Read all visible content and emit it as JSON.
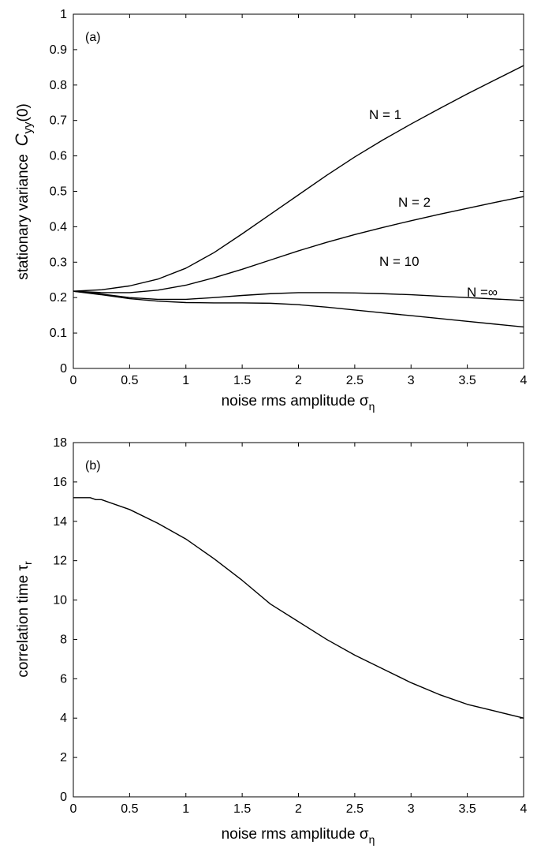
{
  "chart_data": [
    {
      "type": "line",
      "panel_label": "(a)",
      "xlabel": "noise rms amplitude σ",
      "xlabel_sub": "η",
      "ylabel": "stationary variance",
      "ylabel_symbol": "C",
      "ylabel_sub": "yy",
      "ylabel_arg": "(0)",
      "xlim": [
        0,
        4
      ],
      "ylim": [
        0,
        1
      ],
      "xticks": [
        "0",
        "0.5",
        "1",
        "1.5",
        "2",
        "2.5",
        "3",
        "3.5",
        "4"
      ],
      "yticks": [
        "0",
        "0.1",
        "0.2",
        "0.3",
        "0.4",
        "0.5",
        "0.6",
        "0.7",
        "0.8",
        "0.9",
        "1"
      ],
      "grid": false,
      "series": [
        {
          "name": "N = 1",
          "x": [
            0,
            0.25,
            0.5,
            0.75,
            1,
            1.25,
            1.5,
            1.75,
            2,
            2.25,
            2.5,
            2.75,
            3,
            3.25,
            3.5,
            3.75,
            4
          ],
          "y": [
            0.218,
            0.222,
            0.233,
            0.252,
            0.283,
            0.327,
            0.38,
            0.435,
            0.49,
            0.545,
            0.597,
            0.645,
            0.69,
            0.733,
            0.775,
            0.815,
            0.855
          ]
        },
        {
          "name": "N = 2",
          "x": [
            0,
            0.25,
            0.5,
            0.75,
            1,
            1.25,
            1.5,
            1.75,
            2,
            2.25,
            2.5,
            2.75,
            3,
            3.25,
            3.5,
            3.75,
            4
          ],
          "y": [
            0.218,
            0.214,
            0.214,
            0.221,
            0.235,
            0.256,
            0.28,
            0.306,
            0.332,
            0.356,
            0.378,
            0.398,
            0.417,
            0.435,
            0.452,
            0.469,
            0.485
          ]
        },
        {
          "name": "N = 10",
          "x": [
            0,
            0.25,
            0.5,
            0.75,
            1,
            1.25,
            1.5,
            1.75,
            2,
            2.25,
            2.5,
            2.75,
            3,
            3.25,
            3.5,
            3.75,
            4
          ],
          "y": [
            0.218,
            0.21,
            0.2,
            0.195,
            0.195,
            0.2,
            0.206,
            0.211,
            0.214,
            0.214,
            0.213,
            0.211,
            0.208,
            0.204,
            0.2,
            0.196,
            0.192
          ]
        },
        {
          "name": "N =∞",
          "x": [
            0,
            0.25,
            0.5,
            0.75,
            1,
            1.25,
            1.5,
            1.75,
            2,
            2.25,
            2.5,
            2.75,
            3,
            3.25,
            3.5,
            3.75,
            4
          ],
          "y": [
            0.218,
            0.208,
            0.197,
            0.19,
            0.186,
            0.185,
            0.185,
            0.184,
            0.18,
            0.173,
            0.165,
            0.157,
            0.149,
            0.141,
            0.133,
            0.125,
            0.117
          ]
        }
      ]
    },
    {
      "type": "line",
      "panel_label": "(b)",
      "xlabel": "noise rms amplitude σ",
      "xlabel_sub": "η",
      "ylabel": "correlation time τ",
      "ylabel_sub": "r",
      "xlim": [
        0,
        4
      ],
      "ylim": [
        0,
        18
      ],
      "xticks": [
        "0",
        "0.5",
        "1",
        "1.5",
        "2",
        "2.5",
        "3",
        "3.5",
        "4"
      ],
      "yticks": [
        "0",
        "2",
        "4",
        "6",
        "8",
        "10",
        "12",
        "14",
        "16",
        "18"
      ],
      "grid": false,
      "series": [
        {
          "x": [
            0,
            0.15,
            0.2,
            0.25,
            0.5,
            0.75,
            1,
            1.25,
            1.5,
            1.75,
            2,
            2.25,
            2.5,
            2.75,
            3,
            3.25,
            3.5,
            3.75,
            4
          ],
          "y": [
            15.2,
            15.2,
            15.1,
            15.1,
            14.6,
            13.9,
            13.1,
            12.1,
            11.0,
            9.8,
            8.9,
            8.0,
            7.2,
            6.5,
            5.8,
            5.2,
            4.7,
            4.35,
            4.0
          ]
        }
      ]
    }
  ]
}
